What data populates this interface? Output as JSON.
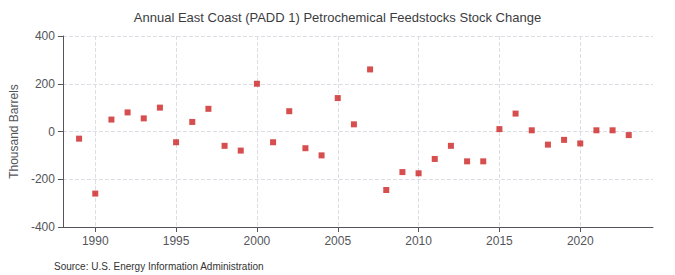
{
  "chart_data": {
    "type": "scatter",
    "title": "Annual East Coast (PADD 1) Petrochemical Feedstocks Stock Change",
    "ylabel": "Thousand Barrels",
    "source": "Source: U.S. Energy Information Administration",
    "x": [
      1989,
      1990,
      1991,
      1992,
      1993,
      1994,
      1995,
      1996,
      1997,
      1998,
      1999,
      2000,
      2001,
      2002,
      2003,
      2004,
      2005,
      2006,
      2007,
      2008,
      2009,
      2010,
      2011,
      2012,
      2013,
      2014,
      2015,
      2016,
      2017,
      2018,
      2019,
      2020,
      2021,
      2022,
      2023
    ],
    "values": [
      -30,
      -260,
      50,
      80,
      55,
      100,
      -45,
      40,
      95,
      -60,
      -80,
      200,
      -45,
      85,
      -70,
      -100,
      140,
      30,
      260,
      -245,
      -170,
      -175,
      -115,
      -60,
      -125,
      -125,
      10,
      75,
      5,
      -55,
      -35,
      -50,
      5,
      5,
      -15
    ],
    "color": "#cc2222",
    "marker": "square",
    "xlim": [
      1988.0,
      2024.5
    ],
    "xticks": [
      1990,
      1995,
      2000,
      2005,
      2010,
      2015,
      2020
    ],
    "ylim": [
      -400,
      400
    ],
    "yticks": [
      -400,
      -200,
      0,
      200,
      400
    ],
    "grid": true
  }
}
